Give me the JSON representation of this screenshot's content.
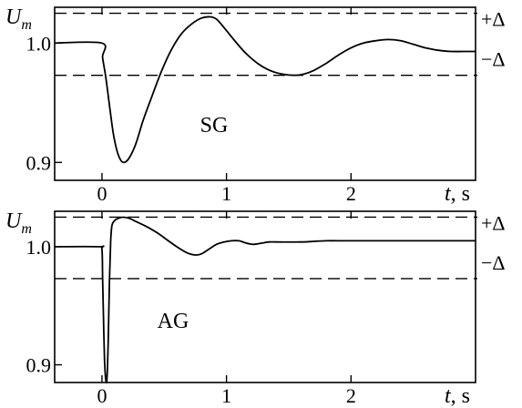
{
  "chart_data": [
    {
      "type": "line",
      "ylabel_base": "U",
      "ylabel_sub": "m",
      "xlabel_var": "t",
      "xlabel_unit": ", s",
      "xlim": [
        -0.38,
        3.0
      ],
      "ylim": [
        0.885,
        1.03
      ],
      "x_ticks": [
        "0",
        "1",
        "2"
      ],
      "y_ticks": [
        "1.0",
        "0.9"
      ],
      "band_upper": 1.025,
      "band_lower": 0.973,
      "band_upper_label": "+Δ",
      "band_lower_label": "−Δ",
      "annotation": "SG",
      "series": [
        {
          "x": [
            -0.38,
            0.0,
            0.005,
            0.03,
            0.06,
            0.09,
            0.12,
            0.15,
            0.18,
            0.22,
            0.27,
            0.33,
            0.4,
            0.48,
            0.56,
            0.64,
            0.72,
            0.8,
            0.87,
            0.92,
            0.98,
            1.05,
            1.15,
            1.25,
            1.35,
            1.45,
            1.55,
            1.62,
            1.7,
            1.8,
            1.9,
            2.0,
            2.1,
            2.2,
            2.3,
            2.4,
            2.5,
            2.6,
            2.7,
            2.8,
            2.9,
            3.0
          ],
          "y": [
            1.0,
            1.0,
            0.988,
            0.972,
            0.948,
            0.925,
            0.91,
            0.902,
            0.9,
            0.904,
            0.915,
            0.935,
            0.955,
            0.977,
            0.995,
            1.008,
            1.016,
            1.021,
            1.022,
            1.02,
            1.013,
            1.004,
            0.992,
            0.983,
            0.977,
            0.974,
            0.973,
            0.974,
            0.977,
            0.983,
            0.99,
            0.996,
            1.0,
            1.002,
            1.003,
            1.002,
            0.999,
            0.996,
            0.994,
            0.993,
            0.993,
            0.993
          ]
        }
      ]
    },
    {
      "type": "line",
      "ylabel_base": "U",
      "ylabel_sub": "m",
      "xlabel_var": "t",
      "xlabel_unit": ", s",
      "xlim": [
        -0.38,
        3.0
      ],
      "ylim": [
        0.885,
        1.03
      ],
      "x_ticks": [
        "0",
        "1",
        "2"
      ],
      "y_ticks": [
        "1.0",
        "0.9"
      ],
      "band_upper": 1.025,
      "band_lower": 0.973,
      "band_upper_label": "+Δ",
      "band_lower_label": "−Δ",
      "annotation": "AG",
      "series": [
        {
          "x": [
            -0.38,
            -0.02,
            0.0,
            0.005,
            0.012,
            0.02,
            0.03,
            0.04,
            0.05,
            0.06,
            0.07,
            0.08,
            0.1,
            0.13,
            0.17,
            0.22,
            0.28,
            0.36,
            0.44,
            0.52,
            0.6,
            0.68,
            0.75,
            0.8,
            0.86,
            0.92,
            0.98,
            1.04,
            1.1,
            1.16,
            1.22,
            1.28,
            1.34,
            1.4,
            1.6,
            1.8,
            2.0,
            2.5,
            3.0
          ],
          "y": [
            1.0,
            1.0,
            0.998,
            0.975,
            0.94,
            0.905,
            0.888,
            0.888,
            0.92,
            0.97,
            1.005,
            1.018,
            1.022,
            1.024,
            1.025,
            1.024,
            1.021,
            1.017,
            1.012,
            1.006,
            1.0,
            0.995,
            0.993,
            0.994,
            0.998,
            1.002,
            1.004,
            1.005,
            1.005,
            1.003,
            1.002,
            1.003,
            1.004,
            1.004,
            1.004,
            1.005,
            1.005,
            1.005,
            1.005
          ]
        }
      ]
    }
  ]
}
